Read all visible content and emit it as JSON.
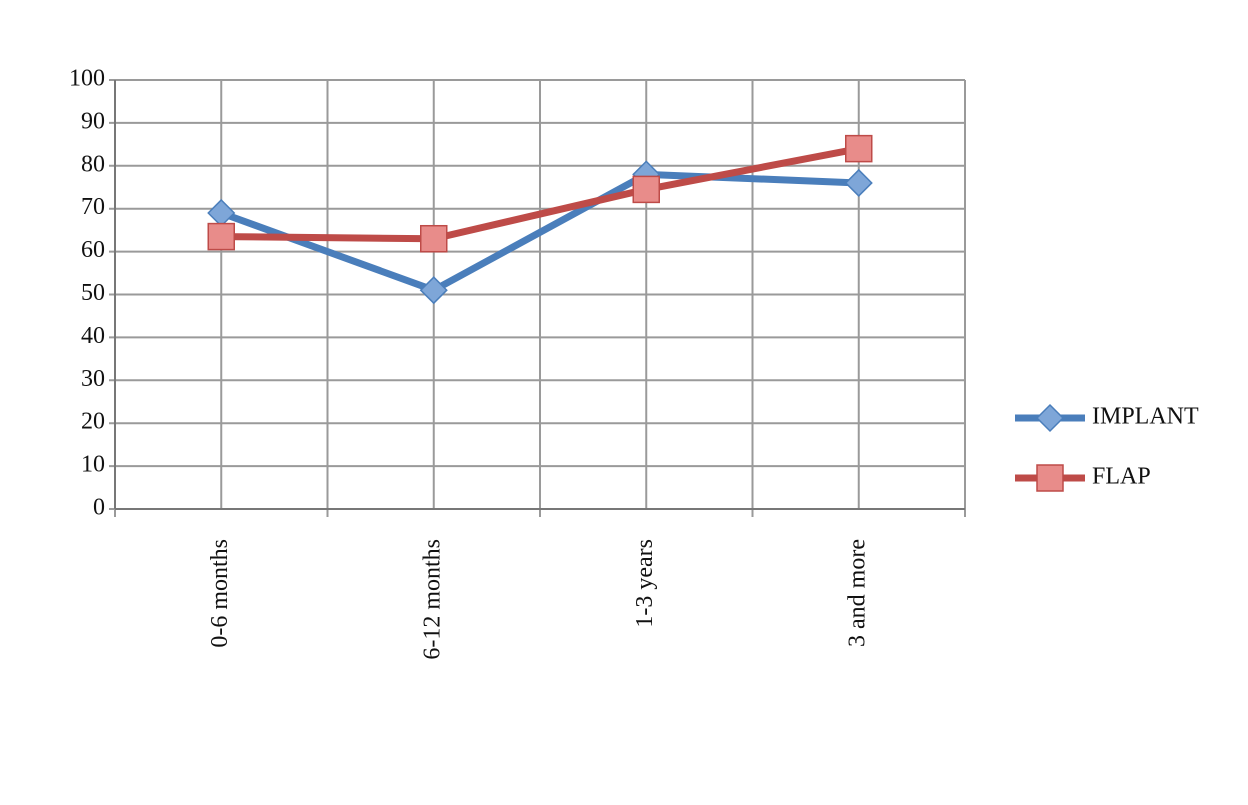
{
  "chart_data": {
    "type": "line",
    "categories": [
      "0-6 months",
      "6-12 months",
      "1-3 years",
      "3 and more"
    ],
    "series": [
      {
        "name": "IMPLANT",
        "color": "#4a7ebb",
        "marker": "diamond",
        "marker_color": "#7ea6d8",
        "values": [
          69,
          51,
          78,
          76
        ]
      },
      {
        "name": "FLAP",
        "color": "#be4b48",
        "marker": "square",
        "marker_color": "#e88c8a",
        "values": [
          63.5,
          63,
          74.5,
          84
        ]
      }
    ],
    "ylim": [
      0,
      100
    ],
    "yticks": [
      0,
      10,
      20,
      30,
      40,
      50,
      60,
      70,
      80,
      90,
      100
    ],
    "grid": true,
    "legend": "right"
  }
}
